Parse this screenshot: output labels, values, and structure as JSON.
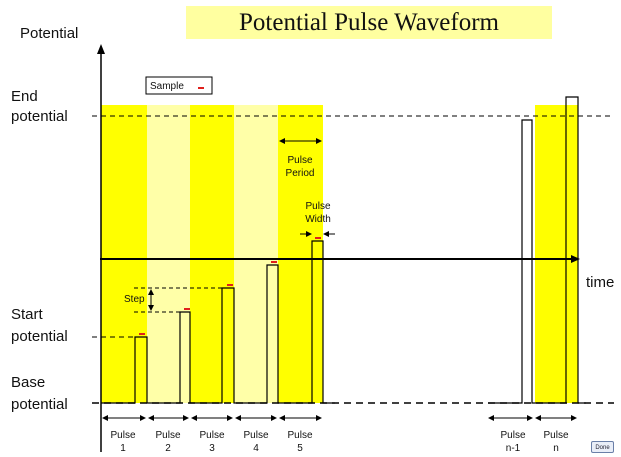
{
  "title": "Potential Pulse Waveform",
  "axes": {
    "y_label": "Potential",
    "x_label": "time"
  },
  "levels": {
    "end": [
      "End",
      "potential"
    ],
    "start": [
      "Start",
      "potential"
    ],
    "base": [
      "Base",
      "potential"
    ]
  },
  "legend": {
    "label": "Sample",
    "marker_color": "#e0201c"
  },
  "annotations": {
    "pulse_period": [
      "Pulse",
      "Period"
    ],
    "pulse_width": [
      "Pulse",
      "Width"
    ],
    "step": "Step"
  },
  "pulse_labels": [
    {
      "top": "Pulse",
      "bottom": "1"
    },
    {
      "top": "Pulse",
      "bottom": "2"
    },
    {
      "top": "Pulse",
      "bottom": "3"
    },
    {
      "top": "Pulse",
      "bottom": "4"
    },
    {
      "top": "Pulse",
      "bottom": "5"
    },
    {
      "top": "Pulse",
      "bottom": "n-1"
    },
    {
      "top": "Pulse",
      "bottom": "n"
    }
  ],
  "colors": {
    "band_dark": "#ffff00",
    "band_light": "#ffffa8",
    "title_bg": "#ffffa0",
    "sample": "#e0201c",
    "line": "#000000"
  },
  "done_button": "Done"
}
